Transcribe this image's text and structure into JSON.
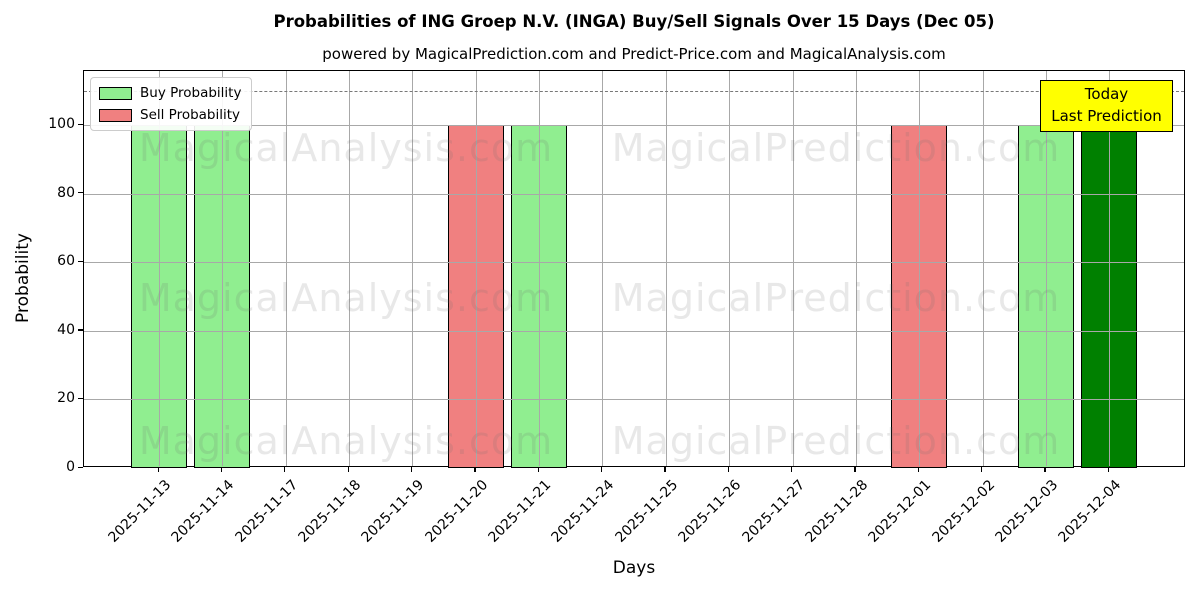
{
  "chart_data": {
    "type": "bar",
    "title": "Probabilities of ING Groep N.V. (INGA) Buy/Sell Signals Over 15 Days (Dec 05)",
    "subtitle": "powered by MagicalPrediction.com and Predict-Price.com and MagicalAnalysis.com",
    "xlabel": "Days",
    "ylabel": "Probability",
    "ylim": [
      0,
      116
    ],
    "yticks": [
      0,
      20,
      40,
      60,
      80,
      100
    ],
    "grid": "both",
    "dashed_threshold_y": 110,
    "legend_position": "top-left",
    "categories": [
      "2025-11-13",
      "2025-11-14",
      "2025-11-17",
      "2025-11-18",
      "2025-11-19",
      "2025-11-20",
      "2025-11-21",
      "2025-11-24",
      "2025-11-25",
      "2025-11-26",
      "2025-11-27",
      "2025-11-28",
      "2025-12-01",
      "2025-12-02",
      "2025-12-03",
      "2025-12-04"
    ],
    "series": [
      {
        "name": "Buy Probability",
        "color": "#90EE90",
        "values": [
          100,
          100,
          0,
          0,
          0,
          0,
          100,
          0,
          0,
          0,
          0,
          0,
          0,
          0,
          100,
          0
        ]
      },
      {
        "name": "Sell Probability",
        "color": "#F08080",
        "values": [
          0,
          0,
          0,
          0,
          0,
          100,
          0,
          0,
          0,
          0,
          0,
          0,
          100,
          0,
          0,
          0
        ]
      },
      {
        "name": "Last Prediction",
        "color": "#008000",
        "values": [
          0,
          0,
          0,
          0,
          0,
          0,
          0,
          0,
          0,
          0,
          0,
          0,
          0,
          0,
          0,
          100
        ]
      }
    ],
    "legend": [
      {
        "label": "Buy Probability",
        "color": "#90EE90"
      },
      {
        "label": "Sell Probability",
        "color": "#F08080"
      }
    ],
    "annotation": {
      "line1": "Today",
      "line2": "Last Prediction",
      "bg_color": "#FFFF00"
    },
    "watermarks": {
      "left_text": "MagicalAnalysis.com",
      "right_text": "MagicalPrediction.com"
    }
  }
}
